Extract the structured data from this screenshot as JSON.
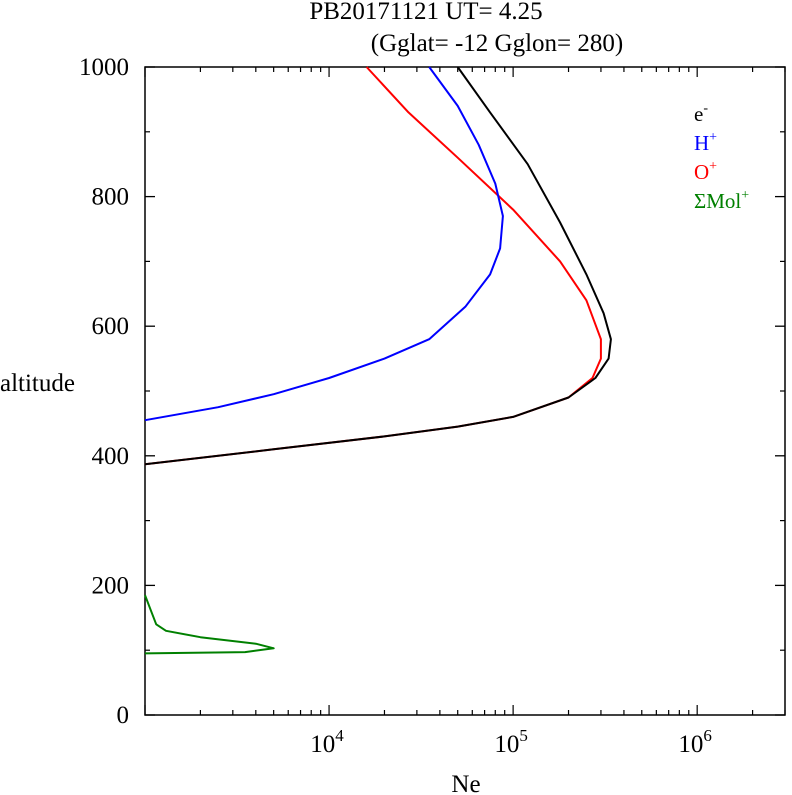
{
  "chart_data": {
    "type": "line",
    "title": "PB20171121   UT=  4.25",
    "subtitle": "(Gglat= -12   Gglon=  280)",
    "xlabel": "Ne",
    "ylabel": "altitude",
    "xscale": "log",
    "xlim": [
      1000,
      3000000
    ],
    "ylim": [
      0,
      1000
    ],
    "xticks": [
      {
        "value": 10000,
        "base": "10",
        "exp": "4"
      },
      {
        "value": 100000,
        "base": "10",
        "exp": "5"
      },
      {
        "value": 1000000,
        "base": "10",
        "exp": "6"
      }
    ],
    "yticks": [
      0,
      200,
      400,
      600,
      800,
      1000
    ],
    "legend_position": "top-right",
    "series": [
      {
        "name": "ΣMol",
        "sup": "+",
        "color": "#008000",
        "points": [
          [
            1000,
            95
          ],
          [
            3500,
            97
          ],
          [
            5000,
            103
          ],
          [
            4000,
            110
          ],
          [
            2000,
            120
          ],
          [
            1300,
            130
          ],
          [
            1150,
            140
          ],
          [
            1080,
            160
          ],
          [
            1000,
            185
          ]
        ]
      },
      {
        "name": "O",
        "sup": "+",
        "color": "#ff0000",
        "points": [
          [
            1000,
            387
          ],
          [
            5000,
            410
          ],
          [
            20000,
            430
          ],
          [
            50000,
            445
          ],
          [
            100000,
            460
          ],
          [
            200000,
            490
          ],
          [
            270000,
            520
          ],
          [
            300000,
            550
          ],
          [
            300000,
            580
          ],
          [
            250000,
            640
          ],
          [
            180000,
            700
          ],
          [
            100000,
            780
          ],
          [
            50000,
            860
          ],
          [
            27000,
            930
          ],
          [
            16000,
            1000
          ]
        ]
      },
      {
        "name": "H",
        "sup": "+",
        "color": "#0000ff",
        "points": [
          [
            1000,
            455
          ],
          [
            2500,
            475
          ],
          [
            5000,
            495
          ],
          [
            10000,
            520
          ],
          [
            20000,
            550
          ],
          [
            35000,
            580
          ],
          [
            55000,
            630
          ],
          [
            75000,
            680
          ],
          [
            85000,
            720
          ],
          [
            88000,
            770
          ],
          [
            80000,
            820
          ],
          [
            65000,
            880
          ],
          [
            50000,
            940
          ],
          [
            35000,
            1000
          ]
        ]
      },
      {
        "name": "e",
        "sup": "-",
        "color": "#000000",
        "points": [
          [
            1000,
            387
          ],
          [
            5000,
            410
          ],
          [
            20000,
            430
          ],
          [
            50000,
            445
          ],
          [
            100000,
            460
          ],
          [
            200000,
            490
          ],
          [
            280000,
            520
          ],
          [
            330000,
            550
          ],
          [
            340000,
            580
          ],
          [
            310000,
            620
          ],
          [
            250000,
            680
          ],
          [
            180000,
            760
          ],
          [
            120000,
            850
          ],
          [
            75000,
            930
          ],
          [
            50000,
            1000
          ]
        ]
      }
    ]
  }
}
